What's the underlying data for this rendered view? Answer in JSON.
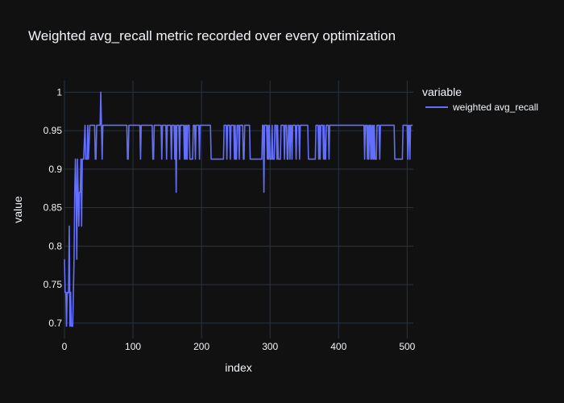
{
  "colors": {
    "background": "#111111",
    "plot_background": "#111111",
    "grid": "#283442",
    "text": "#f2f5fa",
    "series": "#636efa"
  },
  "chart_data": {
    "type": "line",
    "title": "Weighted avg_recall metric recorded over every optimization",
    "xlabel": "index",
    "ylabel": "value",
    "xlim": [
      0,
      509
    ],
    "ylim": [
      0.68,
      1.015
    ],
    "x_ticks": [
      0,
      100,
      200,
      300,
      400,
      500
    ],
    "y_ticks": [
      0.7,
      0.75,
      0.8,
      0.85,
      0.9,
      0.95,
      1
    ],
    "y_tick_labels": [
      "0.7",
      "0.75",
      "0.8",
      "0.85",
      "0.9",
      "0.95",
      "1"
    ],
    "grid": true,
    "legend": {
      "title": "variable",
      "placement": "top-right"
    },
    "series": [
      {
        "name": "weighted avg_recall",
        "points": [
          [
            0,
            0.783
          ],
          [
            1,
            0.74
          ],
          [
            2,
            0.74
          ],
          [
            3,
            0.696
          ],
          [
            4,
            0.74
          ],
          [
            5,
            0.739
          ],
          [
            6,
            0.74
          ],
          [
            7,
            0.826
          ],
          [
            8,
            0.696
          ],
          [
            9,
            0.74
          ],
          [
            10,
            0.696
          ],
          [
            11,
            0.696
          ],
          [
            12,
            0.696
          ],
          [
            13,
            0.739
          ],
          [
            14,
            0.783
          ],
          [
            15,
            0.87
          ],
          [
            16,
            0.913
          ],
          [
            17,
            0.87
          ],
          [
            18,
            0.783
          ],
          [
            19,
            0.913
          ],
          [
            20,
            0.87
          ],
          [
            21,
            0.826
          ],
          [
            22,
            0.87
          ],
          [
            23,
            0.87
          ],
          [
            24,
            0.913
          ],
          [
            25,
            0.826
          ],
          [
            26,
            0.913
          ],
          [
            28,
            0.913
          ],
          [
            30,
            0.957
          ],
          [
            31,
            0.913
          ],
          [
            33,
            0.913
          ],
          [
            34,
            0.957
          ],
          [
            35,
            0.913
          ],
          [
            37,
            0.957
          ],
          [
            40,
            0.957
          ],
          [
            44,
            0.957
          ],
          [
            45,
            0.913
          ],
          [
            46,
            0.913
          ],
          [
            47,
            0.957
          ],
          [
            50,
            0.957
          ],
          [
            52,
            0.957
          ],
          [
            53,
            1.0
          ],
          [
            54,
            0.957
          ],
          [
            55,
            0.913
          ],
          [
            56,
            0.957
          ],
          [
            60,
            0.957
          ],
          [
            91,
            0.957
          ],
          [
            92,
            0.913
          ],
          [
            93,
            0.913
          ],
          [
            94,
            0.957
          ],
          [
            110,
            0.957
          ],
          [
            111,
            0.913
          ],
          [
            112,
            0.957
          ],
          [
            128,
            0.957
          ],
          [
            129,
            0.913
          ],
          [
            130,
            0.913
          ],
          [
            131,
            0.957
          ],
          [
            141,
            0.957
          ],
          [
            142,
            0.913
          ],
          [
            143,
            0.957
          ],
          [
            148,
            0.957
          ],
          [
            149,
            0.913
          ],
          [
            150,
            0.957
          ],
          [
            155,
            0.957
          ],
          [
            156,
            0.913
          ],
          [
            157,
            0.957
          ],
          [
            160,
            0.957
          ],
          [
            161,
            0.913
          ],
          [
            162,
            0.957
          ],
          [
            163,
            0.87
          ],
          [
            164,
            0.957
          ],
          [
            167,
            0.957
          ],
          [
            168,
            0.913
          ],
          [
            169,
            0.957
          ],
          [
            174,
            0.957
          ],
          [
            175,
            0.913
          ],
          [
            176,
            0.957
          ],
          [
            177,
            0.913
          ],
          [
            178,
            0.957
          ],
          [
            179,
            0.913
          ],
          [
            180,
            0.957
          ],
          [
            182,
            0.957
          ],
          [
            183,
            0.913
          ],
          [
            187,
            0.913
          ],
          [
            188,
            0.957
          ],
          [
            190,
            0.957
          ],
          [
            191,
            0.913
          ],
          [
            192,
            0.957
          ],
          [
            196,
            0.957
          ],
          [
            197,
            0.913
          ],
          [
            198,
            0.957
          ],
          [
            213,
            0.957
          ],
          [
            214,
            0.913
          ],
          [
            232,
            0.913
          ],
          [
            233,
            0.957
          ],
          [
            236,
            0.957
          ],
          [
            237,
            0.913
          ],
          [
            238,
            0.957
          ],
          [
            241,
            0.957
          ],
          [
            242,
            0.913
          ],
          [
            243,
            0.957
          ],
          [
            247,
            0.957
          ],
          [
            248,
            0.913
          ],
          [
            249,
            0.957
          ],
          [
            250,
            0.913
          ],
          [
            251,
            0.913
          ],
          [
            252,
            0.957
          ],
          [
            254,
            0.957
          ],
          [
            255,
            0.913
          ],
          [
            256,
            0.957
          ],
          [
            260,
            0.957
          ],
          [
            261,
            0.913
          ],
          [
            262,
            0.913
          ],
          [
            263,
            0.957
          ],
          [
            270,
            0.957
          ],
          [
            271,
            0.913
          ],
          [
            288,
            0.913
          ],
          [
            289,
            0.957
          ],
          [
            290,
            0.957
          ],
          [
            291,
            0.87
          ],
          [
            292,
            0.957
          ],
          [
            295,
            0.957
          ],
          [
            296,
            0.913
          ],
          [
            297,
            0.957
          ],
          [
            298,
            0.913
          ],
          [
            299,
            0.957
          ],
          [
            300,
            0.913
          ],
          [
            302,
            0.913
          ],
          [
            303,
            0.957
          ],
          [
            304,
            0.913
          ],
          [
            306,
            0.913
          ],
          [
            307,
            0.957
          ],
          [
            309,
            0.957
          ],
          [
            310,
            0.913
          ],
          [
            311,
            0.957
          ],
          [
            312,
            0.913
          ],
          [
            315,
            0.913
          ],
          [
            316,
            0.957
          ],
          [
            320,
            0.957
          ],
          [
            321,
            0.913
          ],
          [
            322,
            0.957
          ],
          [
            324,
            0.957
          ],
          [
            325,
            0.913
          ],
          [
            326,
            0.913
          ],
          [
            327,
            0.957
          ],
          [
            328,
            0.957
          ],
          [
            329,
            0.913
          ],
          [
            330,
            0.957
          ],
          [
            331,
            0.957
          ],
          [
            332,
            0.913
          ],
          [
            333,
            0.957
          ],
          [
            337,
            0.957
          ],
          [
            338,
            0.913
          ],
          [
            339,
            0.957
          ],
          [
            342,
            0.957
          ],
          [
            343,
            0.913
          ],
          [
            344,
            0.957
          ],
          [
            355,
            0.957
          ],
          [
            356,
            0.913
          ],
          [
            366,
            0.913
          ],
          [
            367,
            0.957
          ],
          [
            370,
            0.957
          ],
          [
            371,
            0.913
          ],
          [
            372,
            0.957
          ],
          [
            373,
            0.913
          ],
          [
            374,
            0.957
          ],
          [
            377,
            0.957
          ],
          [
            378,
            0.913
          ],
          [
            379,
            0.957
          ],
          [
            380,
            0.913
          ],
          [
            381,
            0.913
          ],
          [
            382,
            0.957
          ],
          [
            385,
            0.957
          ],
          [
            386,
            0.913
          ],
          [
            387,
            0.957
          ],
          [
            437,
            0.957
          ],
          [
            438,
            0.913
          ],
          [
            439,
            0.957
          ],
          [
            441,
            0.957
          ],
          [
            442,
            0.913
          ],
          [
            443,
            0.957
          ],
          [
            444,
            0.913
          ],
          [
            445,
            0.957
          ],
          [
            446,
            0.957
          ],
          [
            447,
            0.913
          ],
          [
            448,
            0.957
          ],
          [
            449,
            0.913
          ],
          [
            450,
            0.957
          ],
          [
            451,
            0.913
          ],
          [
            452,
            0.957
          ],
          [
            453,
            0.913
          ],
          [
            455,
            0.913
          ],
          [
            456,
            0.957
          ],
          [
            459,
            0.957
          ],
          [
            460,
            0.913
          ],
          [
            461,
            0.957
          ],
          [
            481,
            0.957
          ],
          [
            482,
            0.913
          ],
          [
            493,
            0.913
          ],
          [
            494,
            0.957
          ],
          [
            500,
            0.957
          ],
          [
            501,
            0.913
          ],
          [
            502,
            0.957
          ],
          [
            503,
            0.957
          ],
          [
            504,
            0.913
          ],
          [
            505,
            0.957
          ],
          [
            508,
            0.957
          ]
        ]
      }
    ]
  }
}
